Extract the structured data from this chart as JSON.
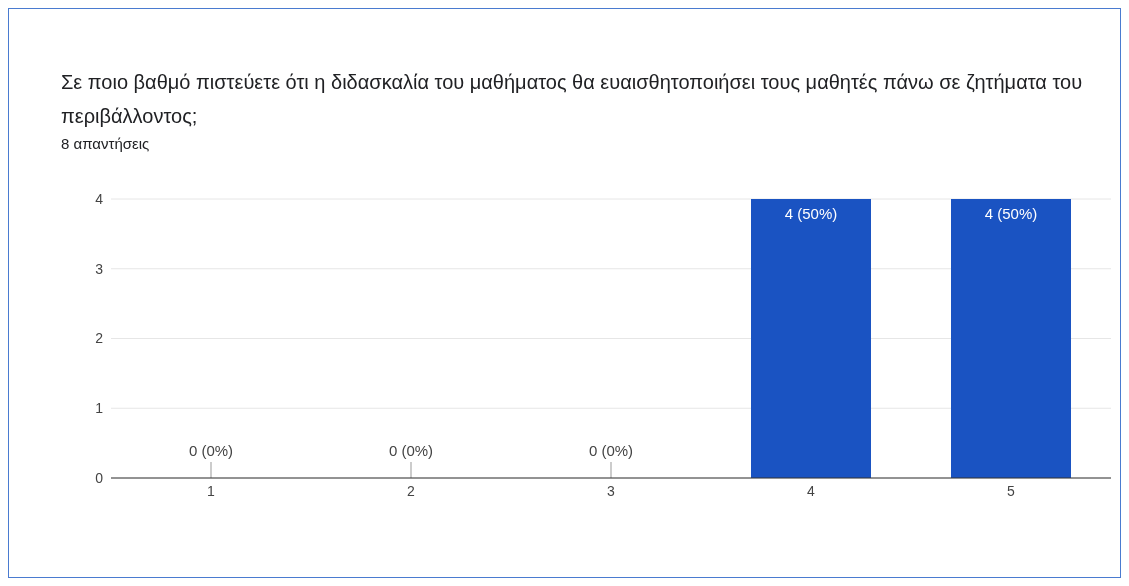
{
  "chart_data": {
    "type": "bar",
    "title": "Σε ποιο βαθμό πιστεύετε ότι η διδασκαλία του μαθήματος θα ευαισθητοποιήσει τους μαθητές πάνω σε ζητήματα του περιβάλλοντος;",
    "subtitle": "8 απαντήσεις",
    "categories": [
      "1",
      "2",
      "3",
      "4",
      "5"
    ],
    "values": [
      0,
      0,
      0,
      4,
      4
    ],
    "value_labels": [
      "0 (0%)",
      "0 (0%)",
      "0 (0%)",
      "4 (50%)",
      "4 (50%)"
    ],
    "color": "#1a53c2",
    "ylim": [
      0,
      4
    ],
    "yticks": [
      0,
      1,
      2,
      3,
      4
    ],
    "grid": "y"
  }
}
